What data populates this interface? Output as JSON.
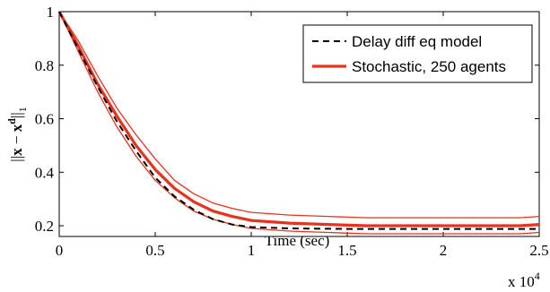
{
  "chart_data": {
    "type": "line",
    "title": "",
    "xlabel": "Time (sec)",
    "ylabel": "||x − x^d||_1",
    "ylabel_parts": {
      "left": "||",
      "x": "x",
      "minus": " − ",
      "xd": "x",
      "sup": "d",
      "right": "||",
      "sub": "1"
    },
    "x_multiplier": "x 10",
    "x_multiplier_exp": "4",
    "xlim": [
      0,
      25000
    ],
    "ylim": [
      0.16,
      1.0
    ],
    "xticks": [
      0,
      5000,
      10000,
      15000,
      20000,
      25000
    ],
    "xtick_labels": [
      "0",
      "0.5",
      "1",
      "1.5",
      "2",
      "2.5"
    ],
    "yticks": [
      0.2,
      0.4,
      0.6,
      0.8,
      1.0
    ],
    "ytick_labels": [
      "0.2",
      "0.4",
      "0.6",
      "0.8",
      "1"
    ],
    "legend_position": "top-right",
    "series": [
      {
        "name": "Delay diff eq model",
        "color": "#000000",
        "style": "dashed",
        "x": [
          0,
          1000,
          2000,
          3000,
          4000,
          5000,
          6000,
          7000,
          8000,
          9000,
          10000,
          12000,
          15000,
          18000,
          20000,
          22000,
          25000
        ],
        "y": [
          1.0,
          0.86,
          0.72,
          0.59,
          0.48,
          0.38,
          0.31,
          0.26,
          0.225,
          0.205,
          0.195,
          0.19,
          0.188,
          0.188,
          0.188,
          0.188,
          0.188
        ]
      },
      {
        "name": "Stochastic, 250 agents",
        "color": "#e8321e",
        "style": "solid-thick",
        "x": [
          0,
          1000,
          2000,
          3000,
          4000,
          5000,
          6000,
          7000,
          8000,
          9000,
          10000,
          12000,
          14000,
          16000,
          18000,
          20000,
          22000,
          24000,
          25000
        ],
        "y": [
          1.0,
          0.87,
          0.73,
          0.61,
          0.5,
          0.41,
          0.34,
          0.29,
          0.255,
          0.235,
          0.22,
          0.21,
          0.205,
          0.2,
          0.2,
          0.2,
          0.2,
          0.2,
          0.205
        ]
      },
      {
        "name": "",
        "color": "#e8321e",
        "style": "solid-thin",
        "x": [
          0,
          1000,
          2000,
          3000,
          4000,
          5000,
          6000,
          7000,
          8000,
          9000,
          10000,
          12000,
          14000,
          16000,
          18000,
          20000,
          22000,
          24000,
          25000
        ],
        "y": [
          1.0,
          0.89,
          0.76,
          0.64,
          0.54,
          0.45,
          0.37,
          0.32,
          0.285,
          0.265,
          0.25,
          0.24,
          0.235,
          0.23,
          0.23,
          0.23,
          0.23,
          0.23,
          0.235
        ]
      },
      {
        "name": "",
        "color": "#e8321e",
        "style": "solid-thin",
        "x": [
          0,
          1000,
          2000,
          3000,
          4000,
          5000,
          6000,
          7000,
          8000,
          9000,
          10000,
          12000,
          14000,
          16000,
          18000,
          20000,
          22000,
          24000,
          25000
        ],
        "y": [
          1.0,
          0.85,
          0.7,
          0.57,
          0.46,
          0.37,
          0.305,
          0.255,
          0.225,
          0.205,
          0.19,
          0.18,
          0.175,
          0.17,
          0.17,
          0.17,
          0.17,
          0.17,
          0.175
        ]
      }
    ],
    "legend": [
      {
        "label": "Delay diff eq model",
        "color": "#000000",
        "style": "dashed"
      },
      {
        "label": "Stochastic, 250 agents",
        "color": "#e8321e",
        "style": "solid-thick"
      }
    ]
  }
}
